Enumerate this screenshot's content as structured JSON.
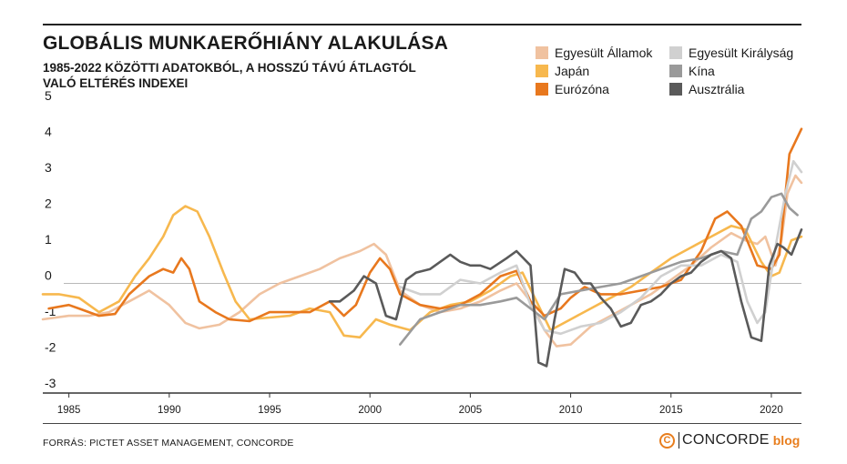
{
  "chart_data": {
    "type": "line",
    "title": "GLOBÁLIS MUNKAERŐHIÁNY ALAKULÁSA",
    "subtitle": "1985-2022 KÖZÖTTI ADATOKBÓL, A HOSSZÚ TÁVÚ ÁTLAGTÓL VALÓ ELTÉRÉS INDEXEI",
    "xlabel": "",
    "ylabel": "",
    "xlim": [
      1983.7,
      2021.5
    ],
    "ylim": [
      -3,
      5
    ],
    "yticks": [
      5,
      4,
      3,
      2,
      1,
      0,
      -1,
      -2,
      -3
    ],
    "xticks": [
      1985,
      1990,
      1995,
      2000,
      2005,
      2010,
      2015,
      2020
    ],
    "legend_position": "top-right",
    "series": [
      {
        "name": "Egyesült Államok",
        "color": "#f0c2a0",
        "points": [
          [
            1983.7,
            -1.0
          ],
          [
            1985,
            -0.9
          ],
          [
            1986,
            -0.9
          ],
          [
            1987,
            -0.8
          ],
          [
            1988,
            -0.5
          ],
          [
            1989,
            -0.2
          ],
          [
            1990,
            -0.6
          ],
          [
            1990.8,
            -1.1
          ],
          [
            1991.5,
            -1.25
          ],
          [
            1992.5,
            -1.15
          ],
          [
            1993.5,
            -0.8
          ],
          [
            1994.5,
            -0.3
          ],
          [
            1995.5,
            0.0
          ],
          [
            1996.5,
            0.2
          ],
          [
            1997.5,
            0.4
          ],
          [
            1998.5,
            0.7
          ],
          [
            1999.5,
            0.9
          ],
          [
            2000.2,
            1.1
          ],
          [
            2000.8,
            0.8
          ],
          [
            2001.5,
            -0.2
          ],
          [
            2002.5,
            -0.6
          ],
          [
            2003.5,
            -0.8
          ],
          [
            2004.5,
            -0.7
          ],
          [
            2005.5,
            -0.5
          ],
          [
            2006.5,
            -0.2
          ],
          [
            2007.3,
            0.0
          ],
          [
            2008,
            -0.5
          ],
          [
            2008.7,
            -1.3
          ],
          [
            2009.3,
            -1.75
          ],
          [
            2010,
            -1.7
          ],
          [
            2011,
            -1.2
          ],
          [
            2012,
            -0.9
          ],
          [
            2013,
            -0.6
          ],
          [
            2014,
            -0.3
          ],
          [
            2015,
            0.1
          ],
          [
            2016,
            0.5
          ],
          [
            2017,
            1.0
          ],
          [
            2018,
            1.4
          ],
          [
            2018.7,
            1.2
          ],
          [
            2019.3,
            1.1
          ],
          [
            2019.7,
            1.3
          ],
          [
            2020.2,
            0.5
          ],
          [
            2020.5,
            1.2
          ],
          [
            2020.8,
            2.5
          ],
          [
            2021.2,
            3.0
          ],
          [
            2021.5,
            2.8
          ]
        ]
      },
      {
        "name": "Japán",
        "color": "#f7b84e",
        "points": [
          [
            1983.7,
            -0.3
          ],
          [
            1984.5,
            -0.3
          ],
          [
            1985.5,
            -0.4
          ],
          [
            1986.5,
            -0.8
          ],
          [
            1987.5,
            -0.5
          ],
          [
            1988.3,
            0.2
          ],
          [
            1989,
            0.7
          ],
          [
            1989.7,
            1.3
          ],
          [
            1990.2,
            1.9
          ],
          [
            1990.8,
            2.15
          ],
          [
            1991.4,
            2.0
          ],
          [
            1992,
            1.3
          ],
          [
            1992.7,
            0.3
          ],
          [
            1993.3,
            -0.5
          ],
          [
            1994,
            -1.0
          ],
          [
            1995,
            -0.95
          ],
          [
            1996,
            -0.9
          ],
          [
            1997,
            -0.7
          ],
          [
            1998,
            -0.8
          ],
          [
            1998.7,
            -1.45
          ],
          [
            1999.5,
            -1.5
          ],
          [
            2000.3,
            -1.0
          ],
          [
            2001,
            -1.15
          ],
          [
            2002,
            -1.3
          ],
          [
            2003,
            -0.8
          ],
          [
            2004,
            -0.6
          ],
          [
            2005,
            -0.5
          ],
          [
            2006,
            -0.2
          ],
          [
            2007,
            0.2
          ],
          [
            2007.6,
            0.3
          ],
          [
            2008.3,
            -0.5
          ],
          [
            2009,
            -1.3
          ],
          [
            2010,
            -1.0
          ],
          [
            2011,
            -0.7
          ],
          [
            2012,
            -0.4
          ],
          [
            2013,
            -0.1
          ],
          [
            2014,
            0.3
          ],
          [
            2015,
            0.7
          ],
          [
            2016,
            1.0
          ],
          [
            2017,
            1.3
          ],
          [
            2018,
            1.6
          ],
          [
            2018.7,
            1.5
          ],
          [
            2019.5,
            0.6
          ],
          [
            2020,
            0.2
          ],
          [
            2020.4,
            0.3
          ],
          [
            2021,
            1.2
          ],
          [
            2021.5,
            1.3
          ]
        ]
      },
      {
        "name": "Eurózóna",
        "color": "#e8781e",
        "points": [
          [
            1984,
            -0.7
          ],
          [
            1985,
            -0.6
          ],
          [
            1985.5,
            -0.7
          ],
          [
            1986.5,
            -0.9
          ],
          [
            1987.3,
            -0.85
          ],
          [
            1988,
            -0.3
          ],
          [
            1989,
            0.2
          ],
          [
            1989.7,
            0.4
          ],
          [
            1990.2,
            0.3
          ],
          [
            1990.6,
            0.7
          ],
          [
            1991,
            0.4
          ],
          [
            1991.5,
            -0.5
          ],
          [
            1992.3,
            -0.8
          ],
          [
            1993,
            -1.0
          ],
          [
            1994,
            -1.05
          ],
          [
            1995,
            -0.8
          ],
          [
            1996,
            -0.8
          ],
          [
            1997,
            -0.8
          ],
          [
            1998,
            -0.5
          ],
          [
            1998.7,
            -0.9
          ],
          [
            1999.3,
            -0.6
          ],
          [
            2000,
            0.3
          ],
          [
            2000.5,
            0.7
          ],
          [
            2001,
            0.4
          ],
          [
            2001.5,
            -0.3
          ],
          [
            2002.5,
            -0.6
          ],
          [
            2003.5,
            -0.7
          ],
          [
            2004.5,
            -0.6
          ],
          [
            2005.5,
            -0.3
          ],
          [
            2006.5,
            0.2
          ],
          [
            2007.3,
            0.35
          ],
          [
            2008,
            -0.5
          ],
          [
            2008.7,
            -0.9
          ],
          [
            2009.5,
            -0.7
          ],
          [
            2010,
            -0.4
          ],
          [
            2010.7,
            -0.1
          ],
          [
            2011.5,
            -0.3
          ],
          [
            2012.5,
            -0.3
          ],
          [
            2013.5,
            -0.2
          ],
          [
            2014.5,
            -0.1
          ],
          [
            2015.5,
            0.1
          ],
          [
            2016.5,
            0.9
          ],
          [
            2017.2,
            1.8
          ],
          [
            2017.8,
            2.0
          ],
          [
            2018.5,
            1.6
          ],
          [
            2019.3,
            0.5
          ],
          [
            2020,
            0.4
          ],
          [
            2020.4,
            0.8
          ],
          [
            2020.9,
            3.6
          ],
          [
            2021.5,
            4.3
          ]
        ]
      },
      {
        "name": "Egyesült Királyság",
        "color": "#d0d0d0",
        "points": [
          [
            2001.5,
            -0.1
          ],
          [
            2002.5,
            -0.3
          ],
          [
            2003.5,
            -0.3
          ],
          [
            2004.5,
            0.1
          ],
          [
            2005.5,
            0.0
          ],
          [
            2006.5,
            0.3
          ],
          [
            2007.3,
            0.5
          ],
          [
            2008,
            -0.6
          ],
          [
            2008.7,
            -1.3
          ],
          [
            2009.5,
            -1.4
          ],
          [
            2010.5,
            -1.2
          ],
          [
            2011.5,
            -1.1
          ],
          [
            2012.5,
            -0.8
          ],
          [
            2013.5,
            -0.4
          ],
          [
            2014.5,
            0.2
          ],
          [
            2015.5,
            0.5
          ],
          [
            2016.5,
            0.5
          ],
          [
            2017.5,
            0.8
          ],
          [
            2018.3,
            0.6
          ],
          [
            2018.8,
            -0.5
          ],
          [
            2019.3,
            -1.1
          ],
          [
            2019.7,
            -0.8
          ],
          [
            2020.2,
            1.0
          ],
          [
            2020.7,
            2.5
          ],
          [
            2021.1,
            3.4
          ],
          [
            2021.5,
            3.1
          ]
        ]
      },
      {
        "name": "Kína",
        "color": "#9a9a9a",
        "points": [
          [
            2001.5,
            -1.7
          ],
          [
            2002.5,
            -1.0
          ],
          [
            2003.5,
            -0.8
          ],
          [
            2004.5,
            -0.6
          ],
          [
            2005.5,
            -0.6
          ],
          [
            2006.5,
            -0.5
          ],
          [
            2007.3,
            -0.4
          ],
          [
            2008,
            -0.7
          ],
          [
            2008.7,
            -1.0
          ],
          [
            2009.5,
            -0.3
          ],
          [
            2010.5,
            -0.2
          ],
          [
            2011.5,
            -0.1
          ],
          [
            2012.5,
            0.0
          ],
          [
            2013.5,
            0.2
          ],
          [
            2014.5,
            0.4
          ],
          [
            2015.5,
            0.6
          ],
          [
            2016.5,
            0.7
          ],
          [
            2017.5,
            0.9
          ],
          [
            2018.3,
            0.8
          ],
          [
            2019,
            1.8
          ],
          [
            2019.5,
            2.0
          ],
          [
            2020,
            2.4
          ],
          [
            2020.5,
            2.5
          ],
          [
            2020.9,
            2.1
          ],
          [
            2021.3,
            1.9
          ]
        ]
      },
      {
        "name": "Ausztrália",
        "color": "#5a5a5a",
        "points": [
          [
            1998,
            -0.5
          ],
          [
            1998.5,
            -0.5
          ],
          [
            1999.2,
            -0.2
          ],
          [
            1999.7,
            0.2
          ],
          [
            2000.3,
            0.0
          ],
          [
            2000.8,
            -0.9
          ],
          [
            2001.3,
            -1.0
          ],
          [
            2001.8,
            0.1
          ],
          [
            2002.3,
            0.3
          ],
          [
            2003,
            0.4
          ],
          [
            2003.5,
            0.6
          ],
          [
            2004,
            0.8
          ],
          [
            2004.5,
            0.6
          ],
          [
            2005,
            0.5
          ],
          [
            2005.5,
            0.5
          ],
          [
            2006,
            0.4
          ],
          [
            2006.8,
            0.7
          ],
          [
            2007.3,
            0.9
          ],
          [
            2008,
            0.5
          ],
          [
            2008.4,
            -2.2
          ],
          [
            2008.8,
            -2.3
          ],
          [
            2009.2,
            -1.0
          ],
          [
            2009.7,
            0.4
          ],
          [
            2010.2,
            0.3
          ],
          [
            2010.6,
            0.0
          ],
          [
            2011,
            0.0
          ],
          [
            2011.5,
            -0.4
          ],
          [
            2012,
            -0.7
          ],
          [
            2012.5,
            -1.2
          ],
          [
            2013,
            -1.1
          ],
          [
            2013.5,
            -0.6
          ],
          [
            2014,
            -0.5
          ],
          [
            2014.5,
            -0.3
          ],
          [
            2015,
            0.0
          ],
          [
            2015.5,
            0.2
          ],
          [
            2016,
            0.3
          ],
          [
            2016.5,
            0.6
          ],
          [
            2017,
            0.8
          ],
          [
            2017.5,
            0.9
          ],
          [
            2018,
            0.7
          ],
          [
            2018.5,
            -0.5
          ],
          [
            2019,
            -1.5
          ],
          [
            2019.5,
            -1.6
          ],
          [
            2019.9,
            0.5
          ],
          [
            2020.3,
            1.1
          ],
          [
            2020.6,
            1.0
          ],
          [
            2021,
            0.8
          ],
          [
            2021.5,
            1.5
          ]
        ]
      }
    ]
  },
  "source": "FORRÁS: PICTET ASSET MANAGEMENT, CONCORDE",
  "brand": {
    "icon": "copyright-c-icon",
    "glyph": "C",
    "name": "CONCORDE",
    "suffix": "blog",
    "accent": "#e87e1e"
  }
}
